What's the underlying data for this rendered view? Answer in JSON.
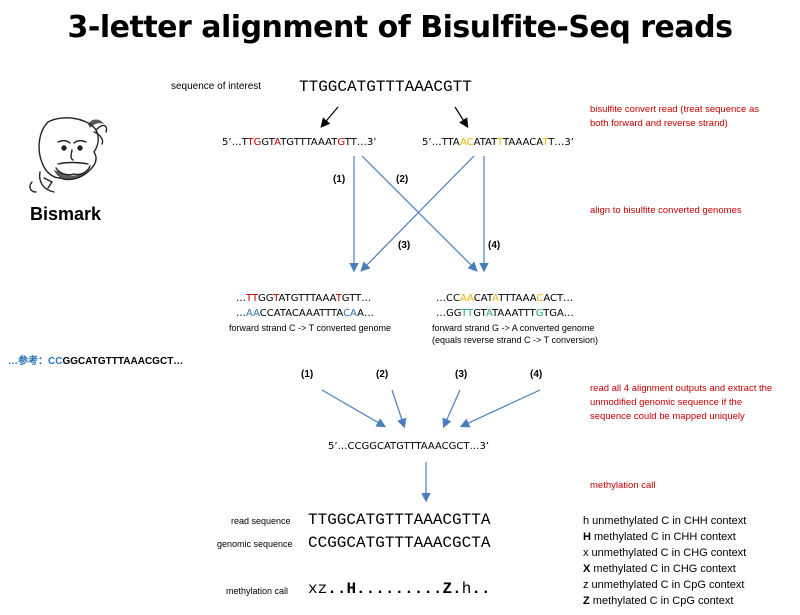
{
  "title": "3-letter alignment of Bisulfite-Seq reads",
  "bismark_label": "Bismark",
  "sequence_of_interest_label": "sequence of interest",
  "sequence_of_interest": "TTGGCATGTTTAAACGTT",
  "notes": {
    "convert": "bisulfite convert read (treat sequence as both forward and reverse strand)",
    "align": "align to bisulfite converted genomes",
    "read_all": "read all 4 alignment outputs and extract the unmodified genomic sequence if the sequence could be mapped uniquely",
    "methylation_call": "methylation call"
  },
  "converted_reads": {
    "forward": "5’…TTGGTATGTTTAAATGTT…3’",
    "reverse": "5’…TTAACATATTTAAACATT…3’"
  },
  "path_labels": [
    "(1)",
    "(2)",
    "(3)",
    "(4)"
  ],
  "genomes": {
    "ct_line1": "…TTGGTATGTTTAAATGTT…",
    "ct_line2": "…AACCATACAAATTTACAA…",
    "ct_caption": "forward strand C -> T converted genome",
    "ga_line1": "…CCAACATATTTAAACACT…",
    "ga_line2": "…GGTTGTATAAATTTGTGA…",
    "ga_caption_1": "forward strand G -> A converted genome",
    "ga_caption_2": "(equals reverse strand C -> T conversion)"
  },
  "reference": {
    "prefix": "…参考：",
    "seq": "CCGGCATGTTTAAACGCT…"
  },
  "genomic_result": "5’…CCGGCATGTTTAAACGCT…3’",
  "read_sequence_label": "read sequence",
  "read_sequence": "TTGGCATGTTTAAACGTTA",
  "genomic_sequence_label": "genomic sequence",
  "genomic_sequence": "CCGGCATGTTTAAACGCTA",
  "methylation_call_label": "methylation call",
  "methylation_call": "xz..H.........Z.h..",
  "legend": [
    {
      "key": "h",
      "text": "unmethylated C in CHH context",
      "bold": false
    },
    {
      "key": "H",
      "text": "methylated C in CHH context",
      "bold": true
    },
    {
      "key": "x",
      "text": "unmethylated C in CHG context",
      "bold": false
    },
    {
      "key": "X",
      "text": "methylated C in CHG context",
      "bold": true
    },
    {
      "key": "z",
      "text": "unmethylated C in CpG context",
      "bold": false
    },
    {
      "key": "Z",
      "text": "methylated C in CpG context",
      "bold": true
    }
  ],
  "colors": {
    "red": "#c00000",
    "yellow": "#f0b400",
    "blue": "#2e75b6",
    "teal": "#17a589",
    "arrow": "#4a7ebb"
  }
}
